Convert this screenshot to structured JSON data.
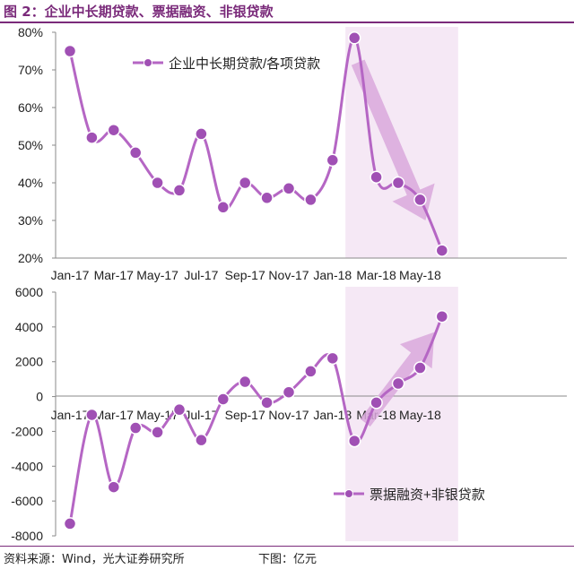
{
  "figure": {
    "title": "图 2：企业中长期贷款、票据融资、非银贷款",
    "source": "资料来源：Wind，光大证券研究所",
    "unit": "下图：亿元"
  },
  "colors": {
    "line": "#b566c4",
    "marker_fill": "#a050b4",
    "marker_stroke": "#ffffff",
    "highlight_band": "#f5e8f5",
    "arrow": "#d9a8dc",
    "title": "#7a2a7a"
  },
  "chart_data": [
    {
      "type": "line",
      "legend": "企业中长期贷款/各项贷款",
      "legend_position": "top-center",
      "x": [
        "Jan-17",
        "Feb-17",
        "Mar-17",
        "Apr-17",
        "May-17",
        "Jun-17",
        "Jul-17",
        "Aug-17",
        "Sep-17",
        "Oct-17",
        "Nov-17",
        "Dec-17",
        "Jan-18",
        "Feb-18",
        "Mar-18",
        "Apr-18",
        "May-18",
        "Jun-18"
      ],
      "values": [
        75,
        52,
        54,
        48,
        40,
        38,
        53,
        33.5,
        40,
        36,
        38.5,
        35.5,
        46,
        78.5,
        41.5,
        40,
        35.5,
        22
      ],
      "x_tick_labels": [
        "Jan-17",
        "Mar-17",
        "May-17",
        "Jul-17",
        "Sep-17",
        "Nov-17",
        "Jan-18",
        "Mar-18",
        "May-18"
      ],
      "y_tick_labels": [
        "20%",
        "30%",
        "40%",
        "50%",
        "60%",
        "70%",
        "80%"
      ],
      "ylim": [
        20,
        80
      ],
      "grid": false,
      "highlight_range": [
        "Feb-18",
        "Jun-18"
      ],
      "trend_arrow": "down"
    },
    {
      "type": "line",
      "legend": "票据融资+非银贷款",
      "legend_position": "bottom-right",
      "x": [
        "Jan-17",
        "Feb-17",
        "Mar-17",
        "Apr-17",
        "May-17",
        "Jun-17",
        "Jul-17",
        "Aug-17",
        "Sep-17",
        "Oct-17",
        "Nov-17",
        "Dec-17",
        "Jan-18",
        "Feb-18",
        "Mar-18",
        "Apr-18",
        "May-18",
        "Jun-18"
      ],
      "values": [
        -7300,
        -1050,
        -5200,
        -1800,
        -2050,
        -750,
        -2500,
        -150,
        850,
        -350,
        250,
        1450,
        2200,
        -2550,
        -350,
        750,
        1650,
        4600
      ],
      "x_tick_labels": [
        "Jan-17",
        "Mar-17",
        "May-17",
        "Jul-17",
        "Sep-17",
        "Nov-17",
        "Jan-18",
        "Mar-18",
        "May-18"
      ],
      "y_tick_labels": [
        "-8000",
        "-6000",
        "-4000",
        "-2000",
        "0",
        "2000",
        "4000",
        "6000"
      ],
      "ylim": [
        -8000,
        6000
      ],
      "grid": false,
      "highlight_range": [
        "Feb-18",
        "Jun-18"
      ],
      "trend_arrow": "up"
    }
  ]
}
